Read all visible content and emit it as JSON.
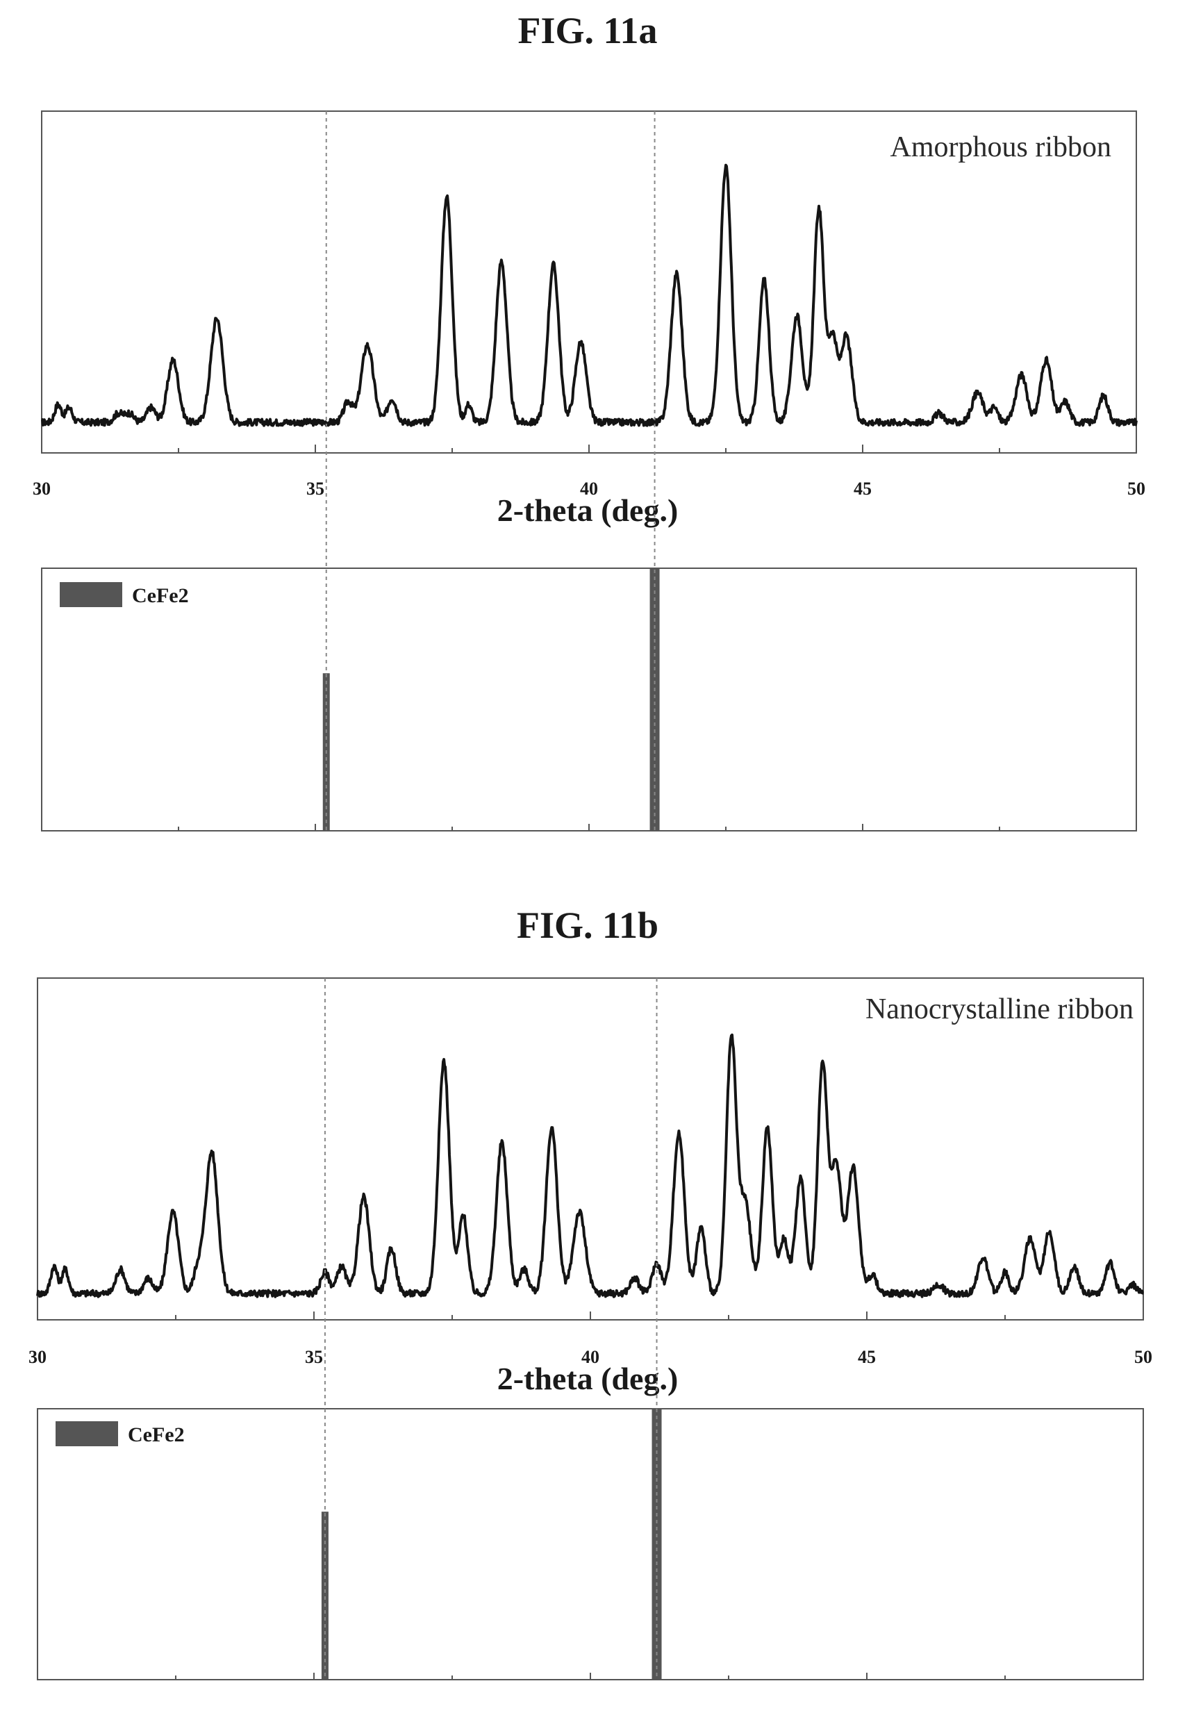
{
  "figures": [
    {
      "title": "FIG. 11a",
      "pattern": {
        "type": "line",
        "annotation": "Amorphous ribbon",
        "xlim": [
          30,
          50
        ],
        "x_ticks": [
          "30",
          "35",
          "40",
          "45",
          "50"
        ],
        "xlabel": "2-theta (deg.)",
        "ylabel": "",
        "y_ticks_shown": false,
        "peaks": [
          {
            "x": 30.3,
            "h": 0.06,
            "w": 0.06
          },
          {
            "x": 30.5,
            "h": 0.05,
            "w": 0.06
          },
          {
            "x": 31.4,
            "h": 0.03,
            "w": 0.08
          },
          {
            "x": 31.6,
            "h": 0.03,
            "w": 0.08
          },
          {
            "x": 32.0,
            "h": 0.05,
            "w": 0.08
          },
          {
            "x": 32.4,
            "h": 0.21,
            "w": 0.1
          },
          {
            "x": 33.2,
            "h": 0.35,
            "w": 0.11
          },
          {
            "x": 35.6,
            "h": 0.07,
            "w": 0.08
          },
          {
            "x": 35.95,
            "h": 0.26,
            "w": 0.11
          },
          {
            "x": 36.4,
            "h": 0.08,
            "w": 0.08
          },
          {
            "x": 37.4,
            "h": 0.76,
            "w": 0.1
          },
          {
            "x": 37.8,
            "h": 0.06,
            "w": 0.06
          },
          {
            "x": 38.4,
            "h": 0.54,
            "w": 0.1
          },
          {
            "x": 39.35,
            "h": 0.53,
            "w": 0.1
          },
          {
            "x": 39.85,
            "h": 0.27,
            "w": 0.1
          },
          {
            "x": 41.6,
            "h": 0.5,
            "w": 0.1
          },
          {
            "x": 42.5,
            "h": 0.86,
            "w": 0.1
          },
          {
            "x": 43.2,
            "h": 0.48,
            "w": 0.09
          },
          {
            "x": 43.8,
            "h": 0.36,
            "w": 0.1
          },
          {
            "x": 44.2,
            "h": 0.72,
            "w": 0.09
          },
          {
            "x": 44.45,
            "h": 0.28,
            "w": 0.08
          },
          {
            "x": 44.7,
            "h": 0.29,
            "w": 0.1
          },
          {
            "x": 46.4,
            "h": 0.03,
            "w": 0.08
          },
          {
            "x": 47.1,
            "h": 0.1,
            "w": 0.1
          },
          {
            "x": 47.4,
            "h": 0.05,
            "w": 0.07
          },
          {
            "x": 47.9,
            "h": 0.16,
            "w": 0.1
          },
          {
            "x": 48.35,
            "h": 0.21,
            "w": 0.1
          },
          {
            "x": 48.7,
            "h": 0.07,
            "w": 0.08
          },
          {
            "x": 49.4,
            "h": 0.09,
            "w": 0.08
          }
        ]
      },
      "reference": {
        "type": "bar",
        "legend": "CeFe2",
        "xlim": [
          30,
          50
        ],
        "bars": [
          {
            "x": 35.2,
            "value": 0.6
          },
          {
            "x": 41.2,
            "value": 1.0
          }
        ]
      }
    },
    {
      "title": "FIG. 11b",
      "pattern": {
        "type": "line",
        "annotation": "Nanocrystalline ribbon",
        "xlim": [
          30,
          50
        ],
        "x_ticks": [
          "30",
          "35",
          "40",
          "45",
          "50"
        ],
        "xlabel": "2-theta (deg.)",
        "ylabel": "",
        "y_ticks_shown": false,
        "peaks": [
          {
            "x": 30.3,
            "h": 0.09,
            "w": 0.06
          },
          {
            "x": 30.5,
            "h": 0.08,
            "w": 0.06
          },
          {
            "x": 31.5,
            "h": 0.08,
            "w": 0.08
          },
          {
            "x": 32.0,
            "h": 0.05,
            "w": 0.08
          },
          {
            "x": 32.45,
            "h": 0.27,
            "w": 0.1
          },
          {
            "x": 32.9,
            "h": 0.08,
            "w": 0.08
          },
          {
            "x": 33.15,
            "h": 0.47,
            "w": 0.11
          },
          {
            "x": 35.2,
            "h": 0.07,
            "w": 0.08
          },
          {
            "x": 35.5,
            "h": 0.09,
            "w": 0.08
          },
          {
            "x": 35.9,
            "h": 0.32,
            "w": 0.1
          },
          {
            "x": 36.4,
            "h": 0.15,
            "w": 0.08
          },
          {
            "x": 37.35,
            "h": 0.77,
            "w": 0.1
          },
          {
            "x": 37.7,
            "h": 0.26,
            "w": 0.08
          },
          {
            "x": 38.4,
            "h": 0.5,
            "w": 0.1
          },
          {
            "x": 38.8,
            "h": 0.08,
            "w": 0.08
          },
          {
            "x": 39.3,
            "h": 0.55,
            "w": 0.1
          },
          {
            "x": 39.8,
            "h": 0.27,
            "w": 0.11
          },
          {
            "x": 40.8,
            "h": 0.05,
            "w": 0.08
          },
          {
            "x": 41.2,
            "h": 0.1,
            "w": 0.08
          },
          {
            "x": 41.6,
            "h": 0.53,
            "w": 0.1
          },
          {
            "x": 42.0,
            "h": 0.22,
            "w": 0.08
          },
          {
            "x": 42.55,
            "h": 0.84,
            "w": 0.09
          },
          {
            "x": 42.8,
            "h": 0.3,
            "w": 0.1
          },
          {
            "x": 43.2,
            "h": 0.55,
            "w": 0.09
          },
          {
            "x": 43.5,
            "h": 0.18,
            "w": 0.08
          },
          {
            "x": 43.8,
            "h": 0.38,
            "w": 0.09
          },
          {
            "x": 44.2,
            "h": 0.76,
            "w": 0.09
          },
          {
            "x": 44.45,
            "h": 0.42,
            "w": 0.09
          },
          {
            "x": 44.75,
            "h": 0.42,
            "w": 0.1
          },
          {
            "x": 45.1,
            "h": 0.06,
            "w": 0.08
          },
          {
            "x": 46.3,
            "h": 0.03,
            "w": 0.08
          },
          {
            "x": 47.1,
            "h": 0.12,
            "w": 0.09
          },
          {
            "x": 47.5,
            "h": 0.07,
            "w": 0.07
          },
          {
            "x": 47.95,
            "h": 0.18,
            "w": 0.1
          },
          {
            "x": 48.3,
            "h": 0.21,
            "w": 0.09
          },
          {
            "x": 48.75,
            "h": 0.09,
            "w": 0.08
          },
          {
            "x": 49.4,
            "h": 0.1,
            "w": 0.08
          },
          {
            "x": 49.8,
            "h": 0.03,
            "w": 0.07
          }
        ]
      },
      "reference": {
        "type": "bar",
        "legend": "CeFe2",
        "xlim": [
          30,
          50
        ],
        "bars": [
          {
            "x": 35.2,
            "value": 0.62
          },
          {
            "x": 41.2,
            "value": 1.0
          }
        ]
      }
    }
  ],
  "reference_lines_x": [
    35.2,
    41.2
  ],
  "colors": {
    "trace": "#141414",
    "bar": "#555555",
    "legend_swatch": "#555555",
    "frame": "#555555",
    "reference_line": "#888888"
  }
}
